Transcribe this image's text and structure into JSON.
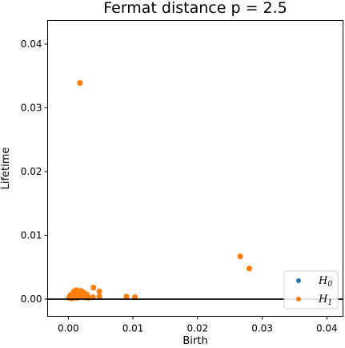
{
  "chart_data": {
    "type": "scatter",
    "title": "Fermat distance p = 2.5",
    "xlabel": "Birth",
    "ylabel": "Lifetime",
    "xlim": [
      -0.0032,
      0.0425
    ],
    "ylim": [
      -0.0027,
      0.0437
    ],
    "xticks": [
      0.0,
      0.01,
      0.02,
      0.03,
      0.04
    ],
    "yticks": [
      0.0,
      0.01,
      0.02,
      0.03,
      0.04
    ],
    "xtick_labels": [
      "0.00",
      "0.01",
      "0.02",
      "0.03",
      "0.04"
    ],
    "ytick_labels": [
      "0.00",
      "0.01",
      "0.02",
      "0.03",
      "0.04"
    ],
    "grid": false,
    "legend_position": "bottom-right",
    "baseline_y": 0,
    "series": [
      {
        "name": "H0",
        "legend_main": "H",
        "legend_sub": "0",
        "color": "#1f77b4",
        "points": []
      },
      {
        "name": "H1",
        "legend_main": "H",
        "legend_sub": "1",
        "color": "#ff7f0e",
        "points": [
          [
            0.0018,
            0.0339
          ],
          [
            0.0266,
            0.0067
          ],
          [
            0.028,
            0.0048
          ],
          [
            0.0039,
            0.0018
          ],
          [
            0.0048,
            0.0012
          ],
          [
            0.009,
            0.0004
          ],
          [
            0.0103,
            0.0003
          ],
          [
            0.0048,
            0.0004
          ],
          [
            0.0038,
            0.0003
          ],
          [
            0.0001,
            0.0002
          ],
          [
            0.0004,
            0.0004
          ],
          [
            0.0006,
            0.0007
          ],
          [
            0.0008,
            0.0011
          ],
          [
            0.0009,
            0.0003
          ],
          [
            0.001,
            0.0013
          ],
          [
            0.0011,
            0.0006
          ],
          [
            0.0012,
            0.0009
          ],
          [
            0.0013,
            0.0002
          ],
          [
            0.0014,
            0.001
          ],
          [
            0.0015,
            0.0005
          ],
          [
            0.0016,
            0.0008
          ],
          [
            0.0017,
            0.0003
          ],
          [
            0.0018,
            0.0012
          ],
          [
            0.0019,
            0.0006
          ],
          [
            0.002,
            0.0009
          ],
          [
            0.0021,
            0.0004
          ],
          [
            0.0022,
            0.0011
          ],
          [
            0.0023,
            0.0007
          ],
          [
            0.0024,
            0.0005
          ],
          [
            0.0025,
            0.0009
          ],
          [
            0.0026,
            0.0003
          ],
          [
            0.0027,
            0.0006
          ],
          [
            0.0028,
            0.0004
          ],
          [
            0.0029,
            0.0007
          ],
          [
            0.0031,
            0.0002
          ],
          [
            0.0005,
            0.0001
          ],
          [
            0.0007,
            0.0002
          ],
          [
            0.0003,
            0.0006
          ],
          [
            0.0013,
            0.0014
          ],
          [
            0.002,
            0.0013
          ]
        ]
      }
    ]
  }
}
